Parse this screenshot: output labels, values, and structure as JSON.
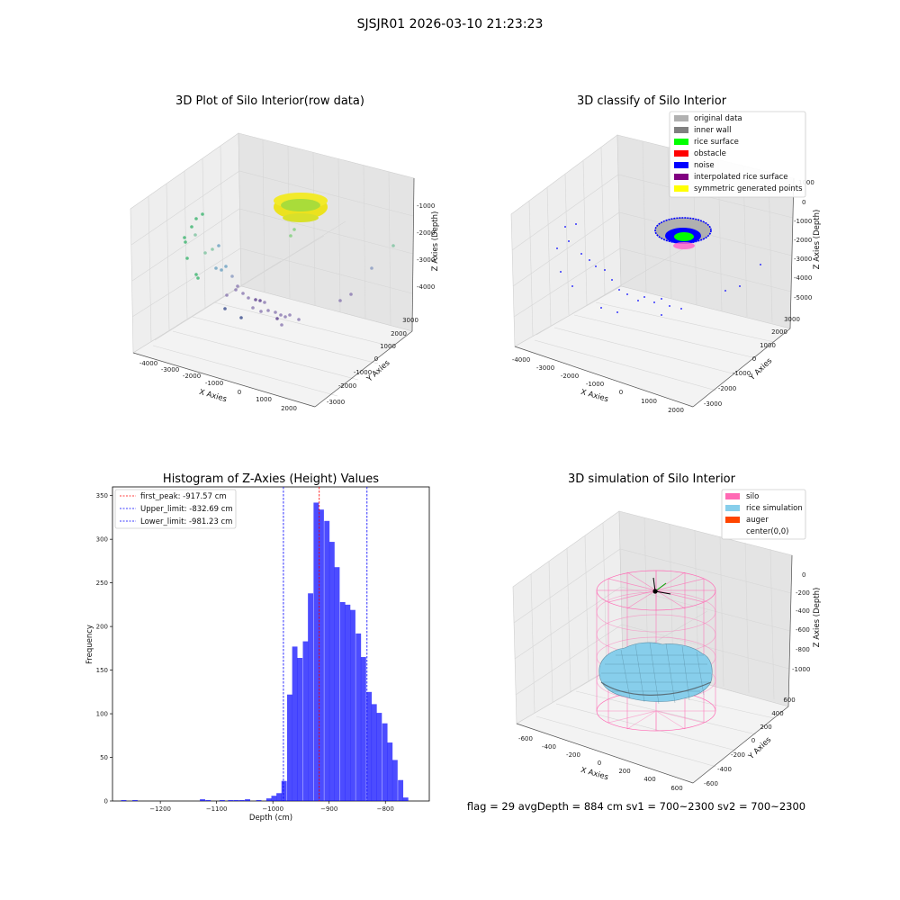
{
  "suptitle": "SJSJR01 2026-03-10 21:23:23",
  "status_line": "flag = 29  avgDepth = 884 cm  sv1 = 700~2300  sv2 = 700~2300",
  "chart_data": [
    {
      "type": "scatter",
      "title": "3D Plot of Silo Interior(row data)",
      "xlabel": "X Axies",
      "ylabel": "Y Axies",
      "zlabel": "Z Axies (Depth)",
      "x_ticks": [
        "-4000",
        "-3000",
        "-2000",
        "-1000",
        "0",
        "1000",
        "2000"
      ],
      "y_ticks": [
        "-3000",
        "-2000",
        "-1000",
        "0",
        "1000",
        "2000",
        "3000"
      ],
      "z_ticks": [
        "-4000",
        "-3000",
        "-2000",
        "-1000"
      ],
      "colors": {
        "ring": "#e8e41c",
        "ring_inner": "#a9dc3a",
        "scatter": [
          "#3bb46e",
          "#7ec3a0",
          "#6aa0c0",
          "#8a78b0",
          "#5a3c8c",
          "#3a4c8c"
        ]
      }
    },
    {
      "type": "scatter",
      "title": "3D classify of Silo Interior",
      "xlabel": "X Axies",
      "ylabel": "Y Axies",
      "zlabel": "Z Axies (Depth)",
      "x_ticks": [
        "-4000",
        "-3000",
        "-2000",
        "-1000",
        "0",
        "1000",
        "2000"
      ],
      "y_ticks": [
        "-3000",
        "-2000",
        "-1000",
        "0",
        "1000",
        "2000",
        "3000"
      ],
      "z_ticks": [
        "-5000",
        "-4000",
        "-3000",
        "-2000",
        "-1000",
        "0",
        "1000"
      ],
      "legend": {
        "position": "top-right",
        "entries": [
          {
            "label": "original data",
            "color": "#b0b0b0"
          },
          {
            "label": "inner wall",
            "color": "#808080"
          },
          {
            "label": "rice surface",
            "color": "#00ff00"
          },
          {
            "label": "obstacle",
            "color": "#ff0000"
          },
          {
            "label": "noise",
            "color": "#0000ff"
          },
          {
            "label": "interpolated rice surface",
            "color": "#800080"
          },
          {
            "label": "symmetric generated points",
            "color": "#ffff00"
          }
        ]
      }
    },
    {
      "type": "bar",
      "title": "Histogram of Z-Axies (Height) Values",
      "xlabel": "Depth (cm)",
      "ylabel": "Frequency",
      "xlim": [
        -1285,
        -722
      ],
      "ylim": [
        0,
        360
      ],
      "x_ticks": [
        -1200,
        -1100,
        -1000,
        -900,
        -800
      ],
      "y_ticks": [
        0,
        50,
        100,
        150,
        200,
        250,
        300,
        350
      ],
      "bin_width": 9.4,
      "bars": [
        {
          "x": -1265,
          "value": 1
        },
        {
          "x": -1245,
          "value": 1
        },
        {
          "x": -1125,
          "value": 2
        },
        {
          "x": -1115,
          "value": 1
        },
        {
          "x": -1090,
          "value": 1
        },
        {
          "x": -1075,
          "value": 1
        },
        {
          "x": -1065,
          "value": 1
        },
        {
          "x": -1055,
          "value": 1
        },
        {
          "x": -1045,
          "value": 2
        },
        {
          "x": -1025,
          "value": 1
        },
        {
          "x": -1007,
          "value": 3
        },
        {
          "x": -998,
          "value": 6
        },
        {
          "x": -989,
          "value": 9
        },
        {
          "x": -980,
          "value": 23
        },
        {
          "x": -970,
          "value": 122
        },
        {
          "x": -961,
          "value": 177
        },
        {
          "x": -952,
          "value": 164
        },
        {
          "x": -942,
          "value": 183
        },
        {
          "x": -933,
          "value": 238
        },
        {
          "x": -923,
          "value": 342
        },
        {
          "x": -914,
          "value": 334
        },
        {
          "x": -904,
          "value": 321
        },
        {
          "x": -895,
          "value": 297
        },
        {
          "x": -886,
          "value": 268
        },
        {
          "x": -876,
          "value": 228
        },
        {
          "x": -867,
          "value": 225
        },
        {
          "x": -858,
          "value": 219
        },
        {
          "x": -848,
          "value": 192
        },
        {
          "x": -839,
          "value": 165
        },
        {
          "x": -829,
          "value": 125
        },
        {
          "x": -820,
          "value": 111
        },
        {
          "x": -811,
          "value": 101
        },
        {
          "x": -801,
          "value": 89
        },
        {
          "x": -792,
          "value": 67
        },
        {
          "x": -783,
          "value": 47
        },
        {
          "x": -773,
          "value": 24
        },
        {
          "x": -764,
          "value": 4
        }
      ],
      "bar_color": "#0000ff",
      "vlines": [
        {
          "label": "first_peak: -917.57 cm",
          "x": -917.57,
          "color": "#ff0000"
        },
        {
          "label": "Upper_limit: -832.69 cm",
          "x": -832.69,
          "color": "#0000ff"
        },
        {
          "label": "Lower_limit: -981.23 cm",
          "x": -981.23,
          "color": "#0000ff"
        }
      ],
      "legend": {
        "position": "top-left"
      }
    },
    {
      "type": "scatter",
      "title": "3D simulation of Silo Interior",
      "xlabel": "X Axies",
      "ylabel": "Y Axies",
      "zlabel": "Z Axies (Depth)",
      "x_ticks": [
        "-600",
        "-400",
        "-200",
        "0",
        "200",
        "400",
        "600"
      ],
      "y_ticks": [
        "-600",
        "-400",
        "-200",
        "0",
        "200",
        "400",
        "600"
      ],
      "z_ticks": [
        "-1000",
        "-800",
        "-600",
        "-400",
        "-200",
        "0"
      ],
      "legend": {
        "position": "top-right",
        "entries": [
          {
            "label": "silo",
            "color": "#ff69b4"
          },
          {
            "label": "rice simulation",
            "color": "#87ceeb"
          },
          {
            "label": "auger",
            "color": "#ff4500"
          },
          {
            "label": "center(0,0)",
            "color": "#ffffff"
          }
        ]
      }
    }
  ]
}
